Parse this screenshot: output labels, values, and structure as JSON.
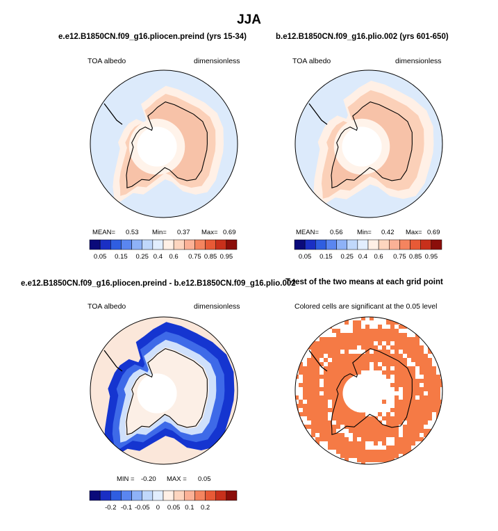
{
  "figure": {
    "title": "JJA"
  },
  "chart_data": [
    {
      "type": "map",
      "title": "e.e12.B1850CN.f09_g16.pliocen.preind (yrs 15-34)",
      "left_label": "TOA albedo",
      "right_label": "dimensionless",
      "projection": "south-polar-stereographic",
      "stats": {
        "mean_label": "MEAN=",
        "mean": "0.53",
        "min_label": "Min=",
        "min": "0.37",
        "max_label": "Max=",
        "max": "0.69"
      },
      "colorbar": {
        "colors": [
          "#0a0a7a",
          "#1a2fc4",
          "#2f5ee0",
          "#5a86f0",
          "#8eb2f7",
          "#c0d8fb",
          "#e2eefe",
          "#fff0e6",
          "#fdd5bf",
          "#fbb196",
          "#f4845f",
          "#e85a36",
          "#c8301b",
          "#8b0e0a"
        ],
        "tick_labels": [
          "0.05",
          "0.15",
          "0.25",
          "0.4",
          "0.6",
          "0.75",
          "0.85",
          "0.95"
        ]
      }
    },
    {
      "type": "map",
      "title": "b.e12.B1850CN.f09_g16.plio.002 (yrs 601-650)",
      "left_label": "TOA albedo",
      "right_label": "dimensionless",
      "projection": "south-polar-stereographic",
      "stats": {
        "mean_label": "MEAN=",
        "mean": "0.56",
        "min_label": "Min=",
        "min": "0.42",
        "max_label": "Max=",
        "max": "0.69"
      },
      "colorbar": {
        "colors": [
          "#0a0a7a",
          "#1a2fc4",
          "#2f5ee0",
          "#5a86f0",
          "#8eb2f7",
          "#c0d8fb",
          "#e2eefe",
          "#fff0e6",
          "#fdd5bf",
          "#fbb196",
          "#f4845f",
          "#e85a36",
          "#c8301b",
          "#8b0e0a"
        ],
        "tick_labels": [
          "0.05",
          "0.15",
          "0.25",
          "0.4",
          "0.6",
          "0.75",
          "0.85",
          "0.95"
        ]
      }
    },
    {
      "type": "map",
      "title": "e.e12.B1850CN.f09_g16.pliocen.preind - b.e12.B1850CN.f09_g16.plio.002",
      "left_label": "TOA albedo",
      "right_label": "dimensionless",
      "projection": "south-polar-stereographic",
      "stats": {
        "min_label": "MIN =",
        "min": "-0.20",
        "max_label": "MAX =",
        "max": "0.05"
      },
      "colorbar": {
        "colors": [
          "#0a0a7a",
          "#1a2fc4",
          "#2f5ee0",
          "#5a86f0",
          "#8eb2f7",
          "#c0d8fb",
          "#e2eefe",
          "#fff0e6",
          "#fdd5bf",
          "#fbb196",
          "#f4845f",
          "#e85a36",
          "#c8301b",
          "#8b0e0a"
        ],
        "tick_labels": [
          "-0.2",
          "-0.1",
          "-0.05",
          "0",
          "0.05",
          "0.1",
          "0.2"
        ]
      }
    },
    {
      "type": "map",
      "title": "T-test of the two means at each grid point",
      "left_label": "Colored cells are significant at the 0.05 level",
      "projection": "south-polar-stereographic",
      "significant_color": "#f57a45"
    }
  ]
}
